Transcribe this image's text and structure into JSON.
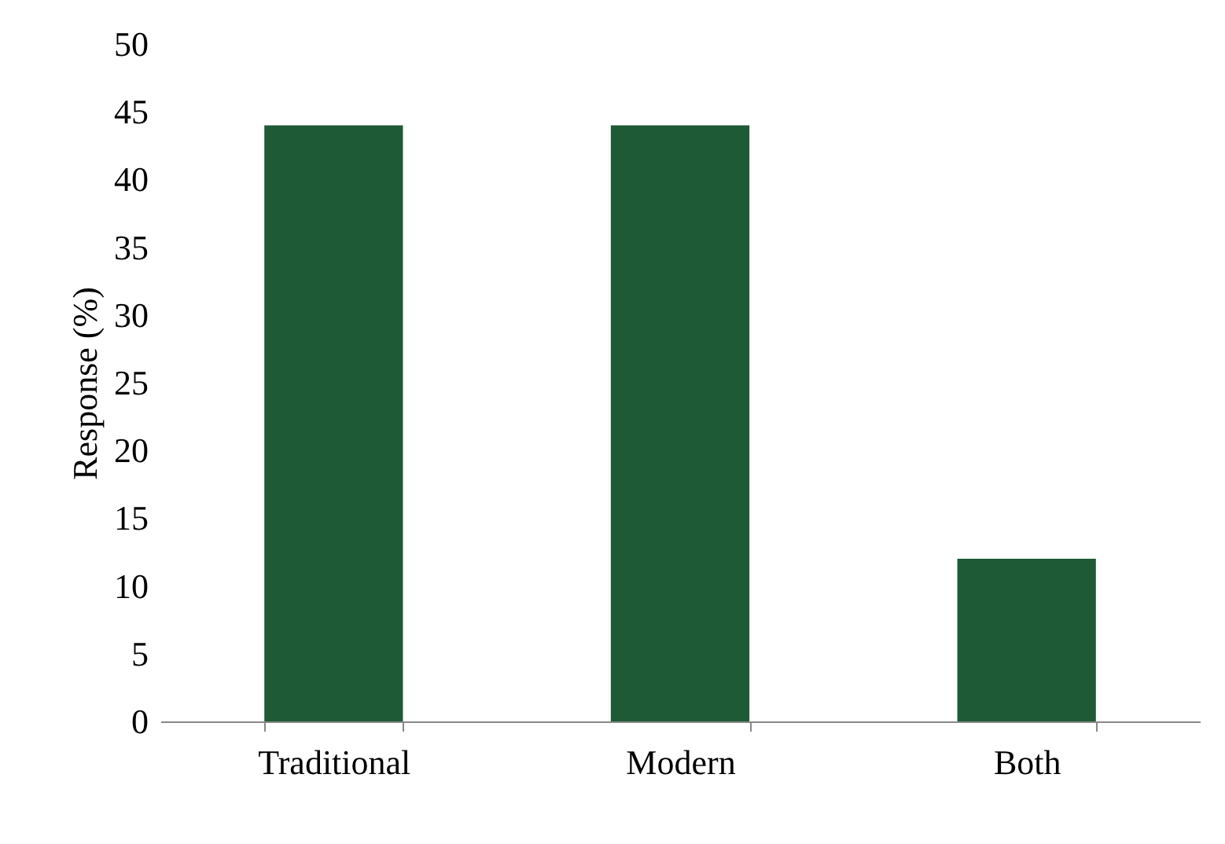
{
  "chart_data": {
    "type": "bar",
    "ylabel": "Response (%)",
    "categories": [
      "Traditional",
      "Modern",
      "Both"
    ],
    "values": [
      44,
      44,
      12
    ],
    "color": "#1f5a36",
    "ylim": [
      0,
      50
    ],
    "yticks": [
      0,
      5,
      10,
      15,
      20,
      25,
      30,
      35,
      40,
      45,
      50
    ]
  }
}
